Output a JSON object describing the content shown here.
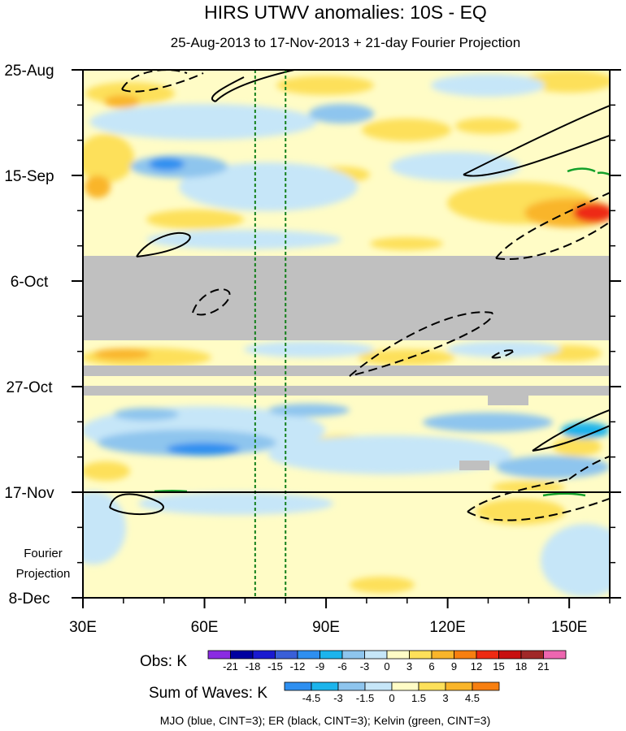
{
  "chart_data": {
    "type": "heatmap",
    "title": "HIRS UTWV anomalies: 10S - EQ",
    "subtitle": "25-Aug-2013 to 17-Nov-2013 + 21-day Fourier Projection",
    "x_axis": {
      "range": [
        30,
        160
      ],
      "ticks": [
        {
          "value": 30,
          "label": "30E"
        },
        {
          "value": 60,
          "label": "60E"
        },
        {
          "value": 90,
          "label": "90E"
        },
        {
          "value": 120,
          "label": "120E"
        },
        {
          "value": 150,
          "label": "150E"
        }
      ]
    },
    "y_axis": {
      "range_days": [
        0,
        105
      ],
      "ticks": [
        {
          "day": 0,
          "label": "25-Aug"
        },
        {
          "day": 21,
          "label": "15-Sep"
        },
        {
          "day": 42,
          "label": "6-Oct"
        },
        {
          "day": 63,
          "label": "27-Oct"
        },
        {
          "day": 84,
          "label": "17-Nov"
        },
        {
          "day": 105,
          "label": "8-Dec"
        }
      ],
      "projection_start_day": 84,
      "projection_label": [
        "Fourier",
        "Projection"
      ]
    },
    "missing_data_bands_days": [
      [
        37,
        54
      ],
      [
        59.5,
        61.5
      ],
      [
        63.5,
        65
      ]
    ],
    "reference_longitudes": [
      72.5,
      80
    ],
    "obs_legend": {
      "label": "Obs: K",
      "levels": [
        "-21",
        "-18",
        "-15",
        "-12",
        "-9",
        "-6",
        "-3",
        "0",
        "3",
        "6",
        "9",
        "12",
        "15",
        "18",
        "21"
      ],
      "colors": [
        "#8a2be2",
        "#0000a0",
        "#1a1ad0",
        "#3a5fd8",
        "#2e8ff0",
        "#1cb4ec",
        "#8ec5ee",
        "#c6e6f8",
        "#fffcc6",
        "#fde05a",
        "#f9b52a",
        "#f77f10",
        "#ee2a12",
        "#c81010",
        "#a02828",
        "#ee66b0"
      ]
    },
    "waves_legend": {
      "label": "Sum of Waves: K",
      "levels": [
        "-4.5",
        "-3",
        "-1.5",
        "0",
        "1.5",
        "3",
        "4.5"
      ],
      "colors": [
        "#2e8ff0",
        "#1cb4ec",
        "#8ec5ee",
        "#c6e6f8",
        "#fffcc6",
        "#fde05a",
        "#f9b52a",
        "#f77f10"
      ]
    },
    "footnote": "MJO (blue, CINT=3); ER (black, CINT=3); Kelvin (green, CINT=3)"
  }
}
